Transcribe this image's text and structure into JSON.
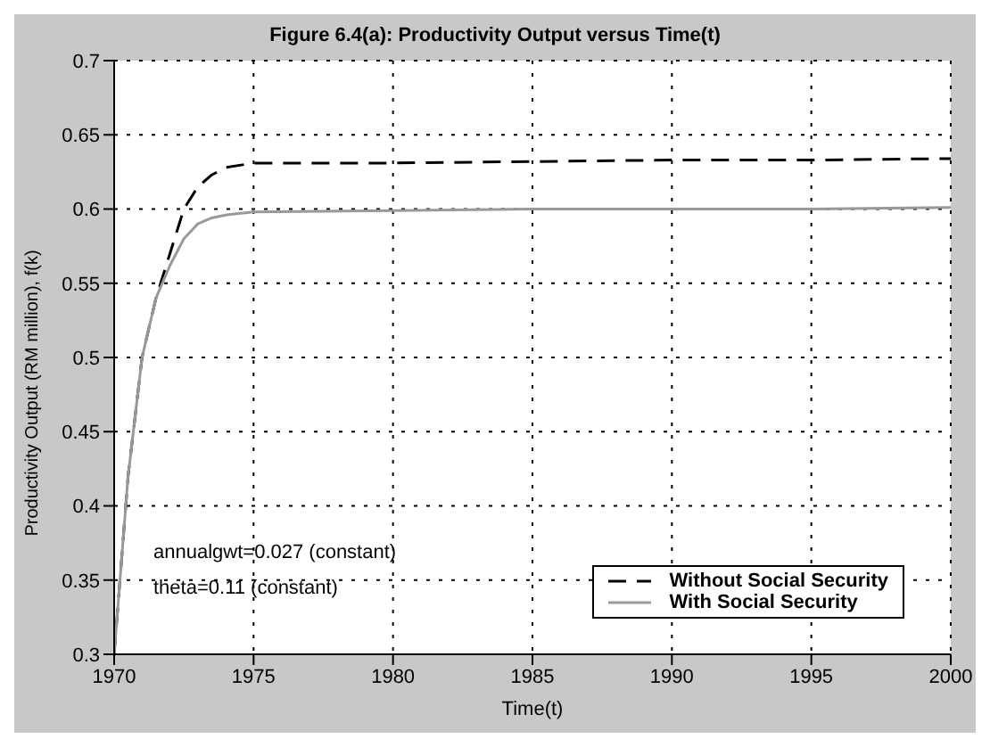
{
  "chart_data": {
    "type": "line",
    "title": "Figure 6.4(a): Productivity Output versus Time(t)",
    "xlabel": "Time(t)",
    "ylabel": "Productivity Output (RM million), f(k)",
    "annotations": [
      "annualgwt=0.027 (constant)",
      "theta=0.11 (constant)"
    ],
    "x": [
      1970,
      1970.5,
      1971,
      1971.5,
      1972,
      1972.5,
      1973,
      1973.5,
      1974,
      1975,
      1980,
      1985,
      1990,
      1995,
      2000
    ],
    "series": [
      {
        "name": "Without Social Security",
        "color": "#000000",
        "line_style": "dashed",
        "values": [
          0.3,
          0.42,
          0.5,
          0.54,
          0.57,
          0.6,
          0.615,
          0.623,
          0.628,
          0.631,
          0.631,
          0.632,
          0.633,
          0.633,
          0.634
        ]
      },
      {
        "name": "With Social Security",
        "color": "#999999",
        "line_style": "solid",
        "values": [
          0.3,
          0.42,
          0.5,
          0.54,
          0.562,
          0.58,
          0.59,
          0.594,
          0.596,
          0.598,
          0.599,
          0.6,
          0.6,
          0.6,
          0.601
        ]
      }
    ],
    "xlim": [
      1970,
      2000
    ],
    "xticks": [
      1970,
      1975,
      1980,
      1985,
      1990,
      1995,
      2000
    ],
    "ylim": [
      0.3,
      0.7
    ],
    "yticks": [
      0.3,
      0.35,
      0.4,
      0.45,
      0.5,
      0.55,
      0.6,
      0.65,
      0.7
    ],
    "grid": true,
    "legend": "bottom right",
    "marker": "none"
  }
}
